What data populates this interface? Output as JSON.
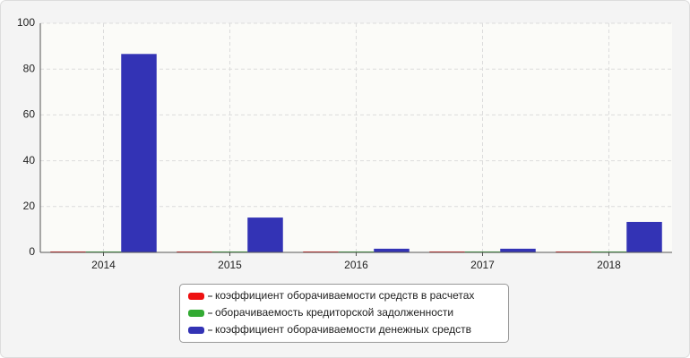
{
  "chart_data": {
    "type": "bar",
    "categories": [
      "2014",
      "2015",
      "2016",
      "2017",
      "2018"
    ],
    "series": [
      {
        "name": "коэффициент оборачиваемости средств в расчетах",
        "color": "#ee1111",
        "values": [
          0.4,
          0.4,
          0.4,
          0.4,
          0.4
        ]
      },
      {
        "name": "оборачиваемость кредиторской задолженности",
        "color": "#33aa33",
        "values": [
          0.4,
          0.4,
          0.4,
          0.4,
          0.4
        ]
      },
      {
        "name": "коэффициент оборачиваемости денежных средств",
        "color": "#3333b5",
        "values": [
          86.6,
          15.2,
          1.6,
          1.6,
          13.3
        ]
      }
    ],
    "ylim": [
      0,
      100
    ],
    "yticks": [
      0,
      20,
      40,
      60,
      80,
      100
    ],
    "grid": true
  }
}
